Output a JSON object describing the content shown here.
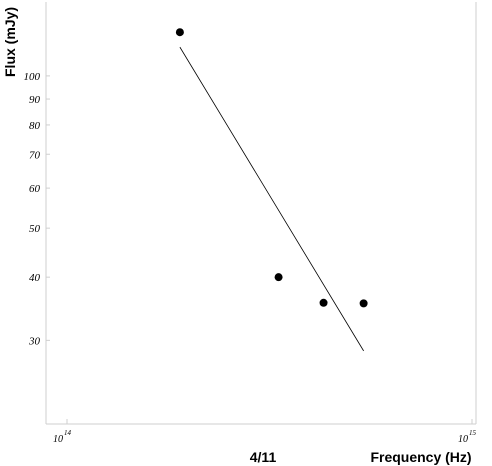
{
  "chart_data": {
    "type": "scatter",
    "title": "",
    "annotation": "4/11",
    "xlabel": "Frequency (Hz)",
    "ylabel": "Flux (mJy)",
    "x_scale": "log",
    "y_scale": "log",
    "xlim": [
      100000000000000.0,
      1000000000000000.0
    ],
    "ylim": [
      20.5,
      140
    ],
    "x_ticks": [
      {
        "value": 100000000000000.0,
        "base": "10",
        "exp": "14"
      },
      {
        "value": 1000000000000000.0,
        "base": "10",
        "exp": "15"
      }
    ],
    "y_ticks": [
      30,
      40,
      50,
      60,
      70,
      80,
      90,
      100
    ],
    "grid": false,
    "points": [
      {
        "x": 190000000000000.0,
        "y": 122
      },
      {
        "x": 333000000000000.0,
        "y": 40
      },
      {
        "x": 430000000000000.0,
        "y": 35.6
      },
      {
        "x": 540000000000000.0,
        "y": 35.5
      }
    ],
    "fit_line": [
      {
        "x": 190000000000000.0,
        "y": 114
      },
      {
        "x": 540000000000000.0,
        "y": 28.6
      }
    ]
  }
}
